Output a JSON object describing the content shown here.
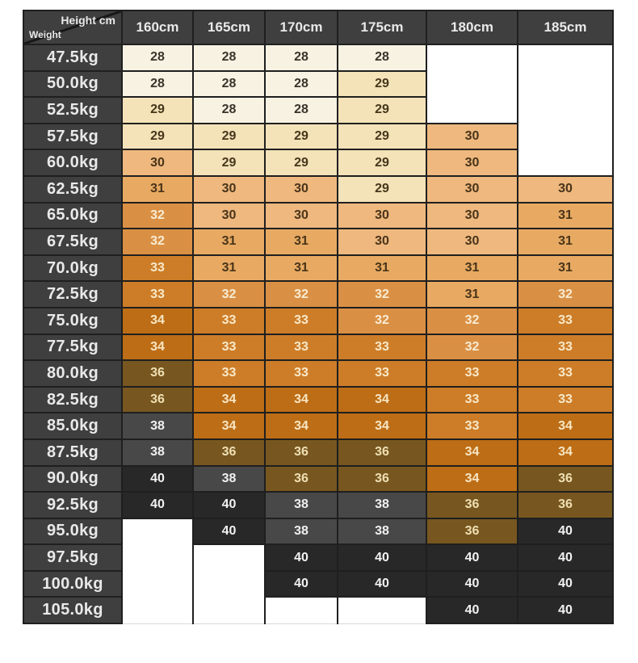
{
  "chart_data": {
    "type": "heatmap",
    "title": "",
    "corner": {
      "x_label": "Height cm",
      "y_label": "Weight"
    },
    "columns": [
      "160cm",
      "165cm",
      "170cm",
      "175cm",
      "180cm",
      "185cm"
    ],
    "rows": [
      {
        "weight": "47.5kg",
        "sizes": [
          28,
          28,
          28,
          28,
          null,
          null
        ]
      },
      {
        "weight": "50.0kg",
        "sizes": [
          28,
          28,
          28,
          29,
          null,
          null
        ]
      },
      {
        "weight": "52.5kg",
        "sizes": [
          29,
          28,
          28,
          29,
          null,
          null
        ]
      },
      {
        "weight": "57.5kg",
        "sizes": [
          29,
          29,
          29,
          29,
          30,
          null
        ]
      },
      {
        "weight": "60.0kg",
        "sizes": [
          30,
          29,
          29,
          29,
          30,
          null
        ]
      },
      {
        "weight": "62.5kg",
        "sizes": [
          31,
          30,
          30,
          29,
          30,
          30
        ]
      },
      {
        "weight": "65.0kg",
        "sizes": [
          32,
          30,
          30,
          30,
          30,
          31
        ]
      },
      {
        "weight": "67.5kg",
        "sizes": [
          32,
          31,
          31,
          30,
          30,
          31
        ]
      },
      {
        "weight": "70.0kg",
        "sizes": [
          33,
          31,
          31,
          31,
          31,
          31
        ]
      },
      {
        "weight": "72.5kg",
        "sizes": [
          33,
          32,
          32,
          32,
          31,
          32
        ]
      },
      {
        "weight": "75.0kg",
        "sizes": [
          34,
          33,
          33,
          32,
          32,
          33
        ]
      },
      {
        "weight": "77.5kg",
        "sizes": [
          34,
          33,
          33,
          33,
          32,
          33
        ]
      },
      {
        "weight": "80.0kg",
        "sizes": [
          36,
          33,
          33,
          33,
          33,
          33
        ]
      },
      {
        "weight": "82.5kg",
        "sizes": [
          36,
          34,
          34,
          34,
          33,
          33
        ]
      },
      {
        "weight": "85.0kg",
        "sizes": [
          38,
          34,
          34,
          34,
          33,
          34
        ]
      },
      {
        "weight": "87.5kg",
        "sizes": [
          38,
          36,
          36,
          36,
          34,
          34
        ]
      },
      {
        "weight": "90.0kg",
        "sizes": [
          40,
          38,
          36,
          36,
          34,
          36
        ]
      },
      {
        "weight": "92.5kg",
        "sizes": [
          40,
          40,
          38,
          38,
          36,
          36
        ]
      },
      {
        "weight": "95.0kg",
        "sizes": [
          null,
          40,
          38,
          38,
          36,
          40
        ]
      },
      {
        "weight": "97.5kg",
        "sizes": [
          null,
          null,
          40,
          40,
          40,
          40
        ]
      },
      {
        "weight": "100.0kg",
        "sizes": [
          null,
          null,
          40,
          40,
          40,
          40
        ]
      },
      {
        "weight": "105.0kg",
        "sizes": [
          null,
          null,
          null,
          null,
          40,
          40
        ]
      }
    ],
    "value_palette": {
      "28": {
        "bg": "#f7f2e2",
        "fg": "#3a332a"
      },
      "29": {
        "bg": "#f4e2b8",
        "fg": "#46371c"
      },
      "30": {
        "bg": "#eeb87e",
        "fg": "#49341a"
      },
      "31": {
        "bg": "#e8aa62",
        "fg": "#49341a"
      },
      "32": {
        "bg": "#da9044",
        "fg": "#f8ecd4"
      },
      "33": {
        "bg": "#cd7d28",
        "fg": "#f8e9c9"
      },
      "34": {
        "bg": "#bd6d15",
        "fg": "#f7e6c4"
      },
      "36": {
        "bg": "#77571f",
        "fg": "#efdfb4"
      },
      "38": {
        "bg": "#484848",
        "fg": "#f0f0f0"
      },
      "40": {
        "bg": "#282828",
        "fg": "#f2f2f2"
      }
    },
    "frame": {
      "header_bg": "#3f3f3f",
      "header_fg": "#e9e9e9",
      "grid_line": "#1f1f1f",
      "blank_bg": "#ffffff",
      "blank_edge": "#d9d9d9",
      "page_bg": "#ffffff"
    }
  }
}
